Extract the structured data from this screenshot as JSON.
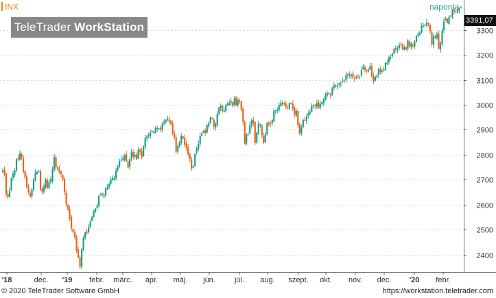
{
  "header": {
    "ticker": "INX",
    "frequency": "naponta",
    "brand_light": "TeleTrader ",
    "brand_bold": "WorkStation",
    "last_price": "3391,07"
  },
  "footer": {
    "copyright": "© 2020 TeleTrader Software GmbH",
    "url": "https://workstation.teletrader.com"
  },
  "colors": {
    "up": "#1aa18a",
    "down": "#e8641e",
    "grid": "#d8d8d8",
    "ticker": "#e8821e"
  },
  "chart_data": {
    "type": "candlestick",
    "series_name": "INX",
    "ylim": [
      2330,
      3420
    ],
    "y_ticks": [
      2400,
      2500,
      2600,
      2700,
      2800,
      2900,
      3000,
      3100,
      3200,
      3300
    ],
    "y_tick_labels": [
      "2400",
      "2500",
      "2600",
      "2700",
      "2800",
      "2900",
      "3000",
      "3100",
      "3200",
      "3300"
    ],
    "x_tick_labels": [
      {
        "label": "'18",
        "year": true
      },
      {
        "label": "dec.",
        "year": false
      },
      {
        "label": "'19",
        "year": true
      },
      {
        "label": "febr.",
        "year": false
      },
      {
        "label": "márc.",
        "year": false
      },
      {
        "label": "ápr.",
        "year": false
      },
      {
        "label": "máj.",
        "year": false
      },
      {
        "label": "jún.",
        "year": false
      },
      {
        "label": "júl.",
        "year": false
      },
      {
        "label": "aug.",
        "year": false
      },
      {
        "label": "szept.",
        "year": false
      },
      {
        "label": "okt.",
        "year": false
      },
      {
        "label": "nov.",
        "year": false
      },
      {
        "label": "dec.",
        "year": false
      },
      {
        "label": "'20",
        "year": true
      },
      {
        "label": "febr.",
        "year": false
      }
    ],
    "closes": [
      2737,
      2723,
      2641,
      2632,
      2657,
      2705,
      2723,
      2738,
      2782,
      2781,
      2806,
      2786,
      2731,
      2709,
      2670,
      2651,
      2632,
      2661,
      2700,
      2728,
      2731,
      2736,
      2660,
      2650,
      2675,
      2698,
      2666,
      2690,
      2700,
      2742,
      2791,
      2750,
      2743,
      2731,
      2722,
      2700,
      2650,
      2600,
      2580,
      2545,
      2505,
      2489,
      2470,
      2416,
      2388,
      2351,
      2420,
      2467,
      2488,
      2486,
      2510,
      2531,
      2549,
      2574,
      2584,
      2596,
      2635,
      2640,
      2644,
      2633,
      2664,
      2670,
      2681,
      2702,
      2706,
      2707,
      2737,
      2753,
      2775,
      2780,
      2784,
      2797,
      2774,
      2748,
      2783,
      2810,
      2793,
      2800,
      2781,
      2819,
      2812,
      2790,
      2834,
      2867,
      2873,
      2878,
      2888,
      2895,
      2888,
      2906,
      2907,
      2905,
      2900,
      2926,
      2933,
      2939,
      2945,
      2932,
      2923,
      2884,
      2870,
      2812,
      2834,
      2850,
      2876,
      2864,
      2840,
      2826,
      2802,
      2783,
      2744,
      2752,
      2803,
      2826,
      2843,
      2874,
      2886,
      2895,
      2887,
      2918,
      2926,
      2950,
      2945,
      2913,
      2924,
      2964,
      2990,
      2995,
      2975,
      2977,
      2999,
      3004,
      3007,
      3014,
      2995,
      3025,
      2998,
      3019,
      3013,
      2980,
      2932,
      2844,
      2881,
      2883,
      2918,
      2938,
      2926,
      2847,
      2888,
      2924,
      2922,
      2878,
      2847,
      2883,
      2926,
      2923,
      2924,
      2938,
      2976,
      2978,
      2979,
      2999,
      3007,
      3009,
      3005,
      2991,
      2984,
      3007,
      3006,
      2984,
      2961,
      2976,
      2919,
      2887,
      2911,
      2940,
      2938,
      2953,
      2966,
      2971,
      2995,
      2997,
      2995,
      3006,
      2986,
      3004,
      3010,
      3022,
      3039,
      3047,
      3046,
      3037,
      3066,
      3078,
      3074,
      3076,
      3085,
      3087,
      3094,
      3096,
      3120,
      3122,
      3117,
      3120,
      3108,
      3104,
      3110,
      3112,
      3113,
      3140,
      3153,
      3140,
      3134,
      3141,
      3154,
      3113,
      3094,
      3112,
      3117,
      3145,
      3132,
      3135,
      3141,
      3168,
      3168,
      3191,
      3192,
      3205,
      3224,
      3221,
      3223,
      3240,
      3240,
      3221,
      3230,
      3222,
      3258,
      3234,
      3246,
      3237,
      3253,
      3275,
      3283,
      3289,
      3316,
      3317,
      3321,
      3330,
      3325,
      3295,
      3243,
      3276,
      3273,
      3283,
      3225,
      3248,
      3297,
      3334,
      3345,
      3328,
      3352,
      3357,
      3380,
      3374,
      3373,
      3380,
      3386,
      3391
    ]
  }
}
